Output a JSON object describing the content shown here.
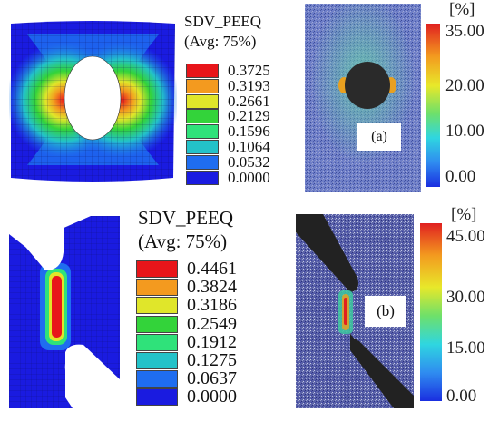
{
  "top": {
    "legend": {
      "title": "SDV_PEEQ",
      "subtitle": "(Avg: 75%)",
      "values": [
        "0.3725",
        "0.3193",
        "0.2661",
        "0.2129",
        "0.1596",
        "0.1064",
        "0.0532",
        "0.0000"
      ],
      "colors": [
        "#e8151a",
        "#f39a1f",
        "#e0e62a",
        "#33d33a",
        "#2fe27a",
        "#23c2c9",
        "#1f6df0",
        "#1a1be0"
      ]
    },
    "colorbar": {
      "unit": "[%]",
      "ticks": [
        "35.00",
        "20.00",
        "10.00",
        "0.00"
      ]
    },
    "panel_label": "(a)"
  },
  "bottom": {
    "legend": {
      "title": "SDV_PEEQ",
      "subtitle": "(Avg: 75%)",
      "values": [
        "0.4461",
        "0.3824",
        "0.3186",
        "0.2549",
        "0.1912",
        "0.1275",
        "0.0637",
        "0.0000"
      ],
      "colors": [
        "#e8151a",
        "#f39a1f",
        "#e0e62a",
        "#33d33a",
        "#2fe27a",
        "#23c2c9",
        "#1f6df0",
        "#1a1be0"
      ]
    },
    "colorbar": {
      "unit": "[%]",
      "ticks": [
        "45.00",
        "30.00",
        "15.00",
        "0.00"
      ]
    },
    "panel_label": "(b)"
  }
}
